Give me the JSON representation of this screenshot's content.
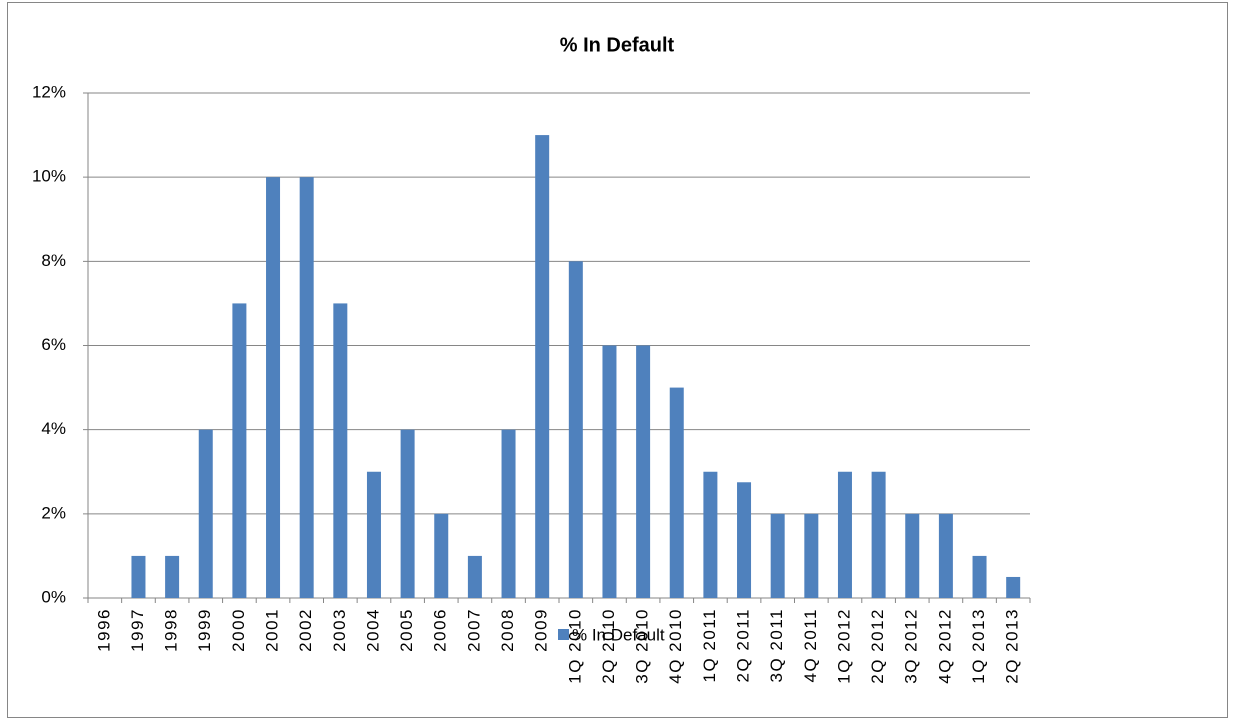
{
  "chart_data": {
    "type": "bar",
    "title": "% In Default",
    "categories": [
      "1996",
      "1997",
      "1998",
      "1999",
      "2000",
      "2001",
      "2002",
      "2003",
      "2004",
      "2005",
      "2006",
      "2007",
      "2008",
      "2009",
      "1Q 2010",
      "2Q 2010",
      "3Q 2010",
      "4Q 2010",
      "1Q 2011",
      "2Q 2011",
      "3Q 2011",
      "4Q 2011",
      "1Q 2012",
      "2Q 2012",
      "3Q 2012",
      "4Q 2012",
      "1Q 2013",
      "2Q 2013"
    ],
    "series": [
      {
        "name": "% In Default",
        "color": "#4f81bd",
        "values": [
          0,
          1,
          1,
          4,
          7,
          10,
          10,
          7,
          3,
          4,
          2,
          1,
          4,
          11,
          8,
          6,
          6,
          5,
          3,
          2.75,
          2,
          2,
          3,
          3,
          2,
          2,
          1,
          0.5
        ]
      }
    ],
    "ylim": [
      0,
      12
    ],
    "yticks": [
      {
        "value": 0,
        "label": "0%"
      },
      {
        "value": 2,
        "label": "2%"
      },
      {
        "value": 4,
        "label": "4%"
      },
      {
        "value": 6,
        "label": "6%"
      },
      {
        "value": 8,
        "label": "8%"
      },
      {
        "value": 10,
        "label": "10%"
      },
      {
        "value": 12,
        "label": "12%"
      }
    ],
    "grid": true,
    "legend": "bottom"
  }
}
